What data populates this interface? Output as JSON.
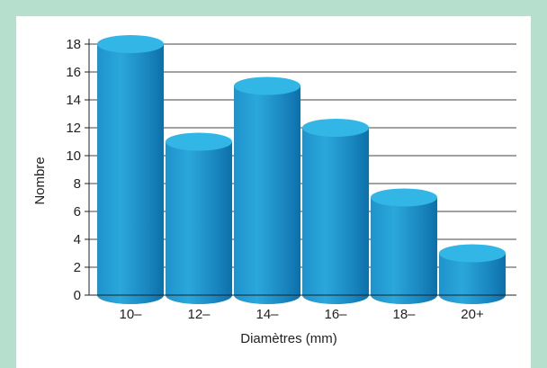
{
  "colors": {
    "background": "#b6dfce",
    "panel": "#ffffff",
    "bar_top": "#31b6e6",
    "bar_side_light": "#2aa7db",
    "bar_side_dark": "#0d6fa8",
    "gridline": "#444444"
  },
  "chart_data": {
    "type": "bar",
    "style": "3d-cylinder",
    "categories": [
      "10–",
      "12–",
      "14–",
      "16–",
      "18–",
      "20+"
    ],
    "values": [
      18,
      11,
      15,
      12,
      7,
      3
    ],
    "xlabel": "Diamètres (mm)",
    "ylabel": "Nombre",
    "ylim": [
      0,
      18
    ],
    "yticks": [
      "0",
      "2",
      "4",
      "6",
      "8",
      "10",
      "12",
      "14",
      "16",
      "18"
    ],
    "grid": true
  }
}
